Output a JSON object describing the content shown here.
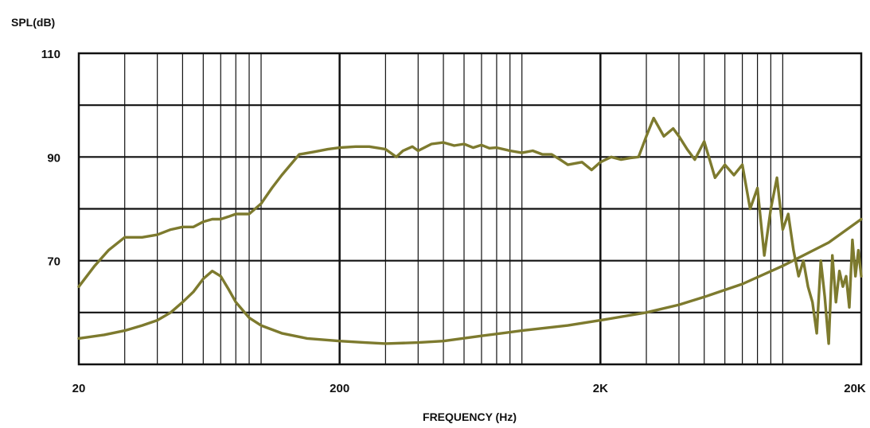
{
  "chart_data": {
    "type": "line",
    "title": "",
    "xlabel": "FREQUENCY (Hz)",
    "ylabel": "SPL(dB)",
    "x_scale": "log",
    "xlim": [
      20,
      20000
    ],
    "ylim": [
      50,
      110
    ],
    "x_ticks": [
      {
        "value": 20,
        "label": "20"
      },
      {
        "value": 200,
        "label": "200"
      },
      {
        "value": 2000,
        "label": "2K"
      },
      {
        "value": 20000,
        "label": "20K"
      }
    ],
    "y_ticks": [
      {
        "value": 110,
        "label": "110"
      },
      {
        "value": 90,
        "label": "90"
      },
      {
        "value": 70,
        "label": "70"
      }
    ],
    "y_gridlines": [
      50,
      60,
      70,
      80,
      90,
      100,
      110
    ],
    "grid": true,
    "line_color": "#7d7a2e",
    "series": [
      {
        "x": [
          20,
          23,
          26,
          30,
          35,
          40,
          45,
          50,
          55,
          60,
          65,
          70,
          75,
          80,
          90,
          100,
          110,
          120,
          140,
          160,
          180,
          200,
          230,
          260,
          300,
          330,
          350,
          380,
          400,
          450,
          500,
          550,
          600,
          650,
          700,
          750,
          800,
          900,
          1000,
          1100,
          1200,
          1300,
          1400,
          1500,
          1700,
          1850,
          2000,
          2200,
          2400,
          2600,
          2800,
          3000,
          3200,
          3500,
          3800,
          4000,
          4300,
          4600,
          5000,
          5500,
          6000,
          6500,
          7000,
          7500,
          8000,
          8500,
          9000,
          9500,
          10000,
          10500,
          11000,
          11500,
          12000,
          12500,
          13000,
          13500,
          14000,
          14500,
          15000,
          15500,
          16000,
          16500,
          17000,
          17500,
          18000,
          18500,
          19000,
          19500,
          20000
        ],
        "y": [
          65,
          69,
          72,
          74.5,
          74.5,
          75,
          76,
          76.5,
          76.5,
          77.5,
          78,
          78,
          78.5,
          79,
          79,
          81,
          84,
          86.5,
          90.5,
          91,
          91.5,
          91.8,
          92,
          92,
          91.5,
          90,
          91.2,
          92,
          91.2,
          92.5,
          92.8,
          92.2,
          92.5,
          91.8,
          92.3,
          91.7,
          91.8,
          91.2,
          90.8,
          91.2,
          90.5,
          90.5,
          89.5,
          88.5,
          89,
          87.5,
          89,
          90,
          89.5,
          89.8,
          90,
          94,
          97.5,
          94,
          95.5,
          94,
          91.5,
          89.5,
          93,
          86,
          88.5,
          86.5,
          88.5,
          80,
          84,
          71,
          80,
          86,
          76,
          79,
          72,
          67,
          70,
          65,
          62,
          56,
          70,
          63,
          54,
          71,
          62,
          68,
          65,
          67,
          61,
          74,
          67,
          72,
          67
        ],
        "style": "thick-line"
      },
      {
        "x": [
          20,
          25,
          30,
          35,
          40,
          45,
          50,
          55,
          60,
          65,
          70,
          75,
          80,
          90,
          100,
          120,
          150,
          200,
          250,
          300,
          400,
          500,
          700,
          1000,
          1500,
          2000,
          3000,
          4000,
          5000,
          7000,
          10000,
          15000,
          20000
        ],
        "y": [
          55,
          55.7,
          56.5,
          57.5,
          58.5,
          60,
          62,
          64,
          66.5,
          68,
          67,
          64.5,
          62,
          59,
          57.5,
          56,
          55,
          54.5,
          54.2,
          54,
          54.2,
          54.5,
          55.5,
          56.5,
          57.5,
          58.5,
          60,
          61.5,
          63,
          65.5,
          69,
          73.5,
          78
        ],
        "style": "thick-line"
      }
    ]
  }
}
